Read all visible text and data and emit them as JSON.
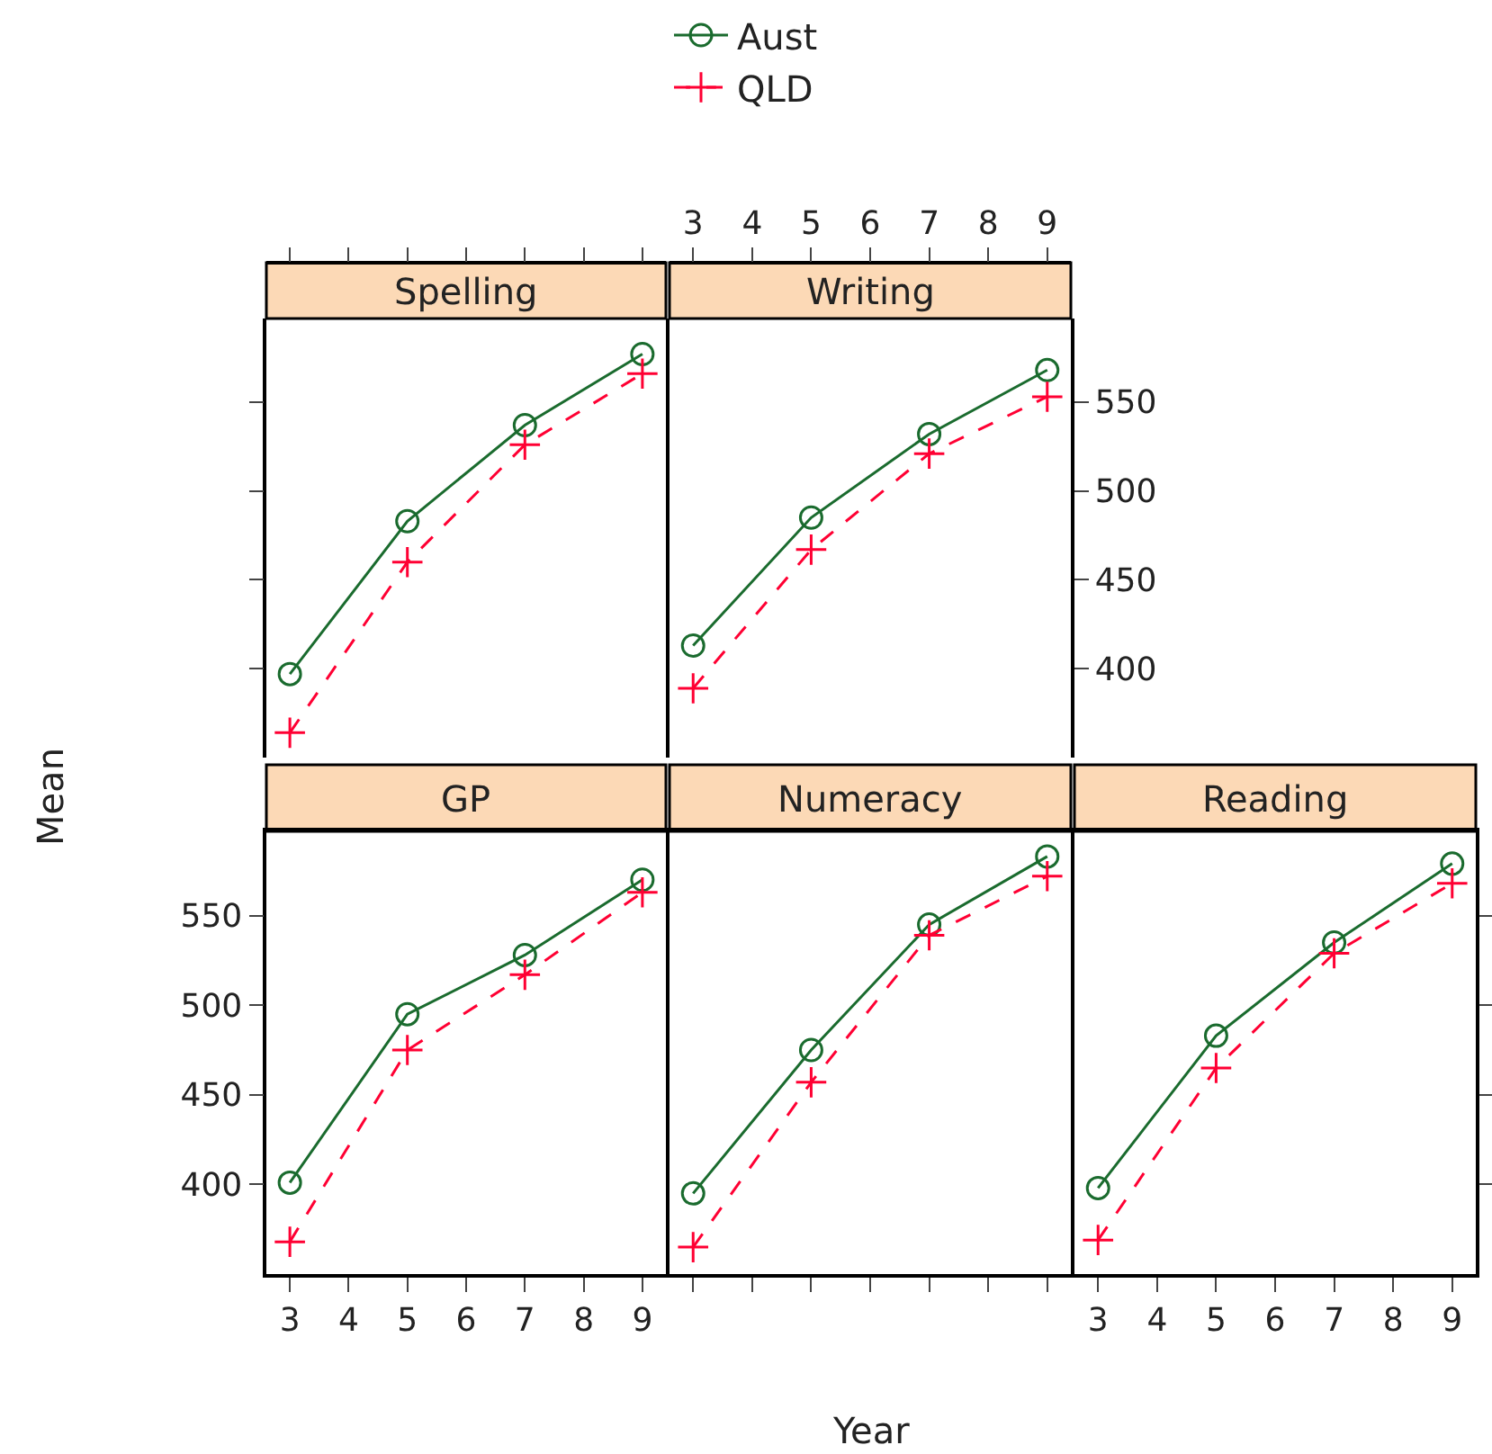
{
  "chart_data": [
    {
      "type": "line",
      "title": "Spelling",
      "x": [
        3,
        5,
        7,
        9
      ],
      "xlim": [
        2.6,
        9.4
      ],
      "xticks": [
        3,
        4,
        5,
        6,
        7,
        8,
        9
      ],
      "ylim": [
        350,
        597
      ],
      "yticks": [
        400,
        450,
        500,
        550
      ],
      "tick_labels": false,
      "legend": "top",
      "series": [
        {
          "name": "Aust",
          "color": "#1a6b2e",
          "marker": "circle",
          "line_style": "solid",
          "values": [
            397,
            483,
            537,
            577
          ]
        },
        {
          "name": "QLD",
          "color": "#ff0033",
          "marker": "cross",
          "line_style": "dashed",
          "values": [
            364,
            460,
            526,
            566
          ]
        }
      ]
    },
    {
      "type": "line",
      "title": "Writing",
      "x": [
        3,
        5,
        7,
        9
      ],
      "xlim": [
        2.6,
        9.4
      ],
      "xticks": [
        3,
        4,
        5,
        6,
        7,
        8,
        9
      ],
      "ylim": [
        350,
        597
      ],
      "yticks": [
        400,
        450,
        500,
        550
      ],
      "series": [
        {
          "color": "#1a6b2e",
          "marker": "circle",
          "line_style": "solid",
          "values": [
            413,
            485,
            532,
            568
          ]
        },
        {
          "color": "#ff0033",
          "marker": "cross",
          "line_style": "dashed",
          "values": [
            389,
            467,
            521,
            553
          ]
        }
      ]
    },
    {
      "type": "line",
      "title": "GP",
      "xlabel": "Year",
      "ylabel": "Mean",
      "x": [
        3,
        5,
        7,
        9
      ],
      "xlim": [
        2.6,
        9.4
      ],
      "xticks": [
        3,
        4,
        5,
        6,
        7,
        8,
        9
      ],
      "ylim": [
        350,
        597
      ],
      "yticks": [
        400,
        450,
        500,
        550
      ],
      "series": [
        {
          "color": "#1a6b2e",
          "marker": "circle",
          "line_style": "solid",
          "values": [
            401,
            495,
            528,
            570
          ]
        },
        {
          "color": "#ff0033",
          "marker": "cross",
          "line_style": "dashed",
          "values": [
            368,
            475,
            517,
            563
          ]
        }
      ]
    },
    {
      "type": "line",
      "title": "Numeracy",
      "x": [
        3,
        5,
        7,
        9
      ],
      "xlim": [
        2.6,
        9.4
      ],
      "xticks": [
        3,
        4,
        5,
        6,
        7,
        8,
        9
      ],
      "ylim": [
        350,
        597
      ],
      "yticks": [
        400,
        450,
        500,
        550
      ],
      "tick_labels": false,
      "series": [
        {
          "color": "#1a6b2e",
          "marker": "circle",
          "line_style": "solid",
          "values": [
            395,
            475,
            545,
            583
          ]
        },
        {
          "color": "#ff0033",
          "marker": "cross",
          "line_style": "dashed",
          "values": [
            365,
            457,
            539,
            572
          ]
        }
      ]
    },
    {
      "type": "line",
      "title": "Reading",
      "x": [
        3,
        5,
        7,
        9
      ],
      "xlim": [
        2.6,
        9.4
      ],
      "xticks": [
        3,
        4,
        5,
        6,
        7,
        8,
        9
      ],
      "ylim": [
        350,
        597
      ],
      "yticks": [
        400,
        450,
        500,
        550
      ],
      "tick_labels": "x",
      "series": [
        {
          "color": "#1a6b2e",
          "marker": "circle",
          "line_style": "solid",
          "values": [
            398,
            483,
            535,
            579
          ]
        },
        {
          "color": "#ff0033",
          "marker": "cross",
          "line_style": "dashed",
          "values": [
            369,
            465,
            529,
            568
          ]
        }
      ]
    }
  ]
}
